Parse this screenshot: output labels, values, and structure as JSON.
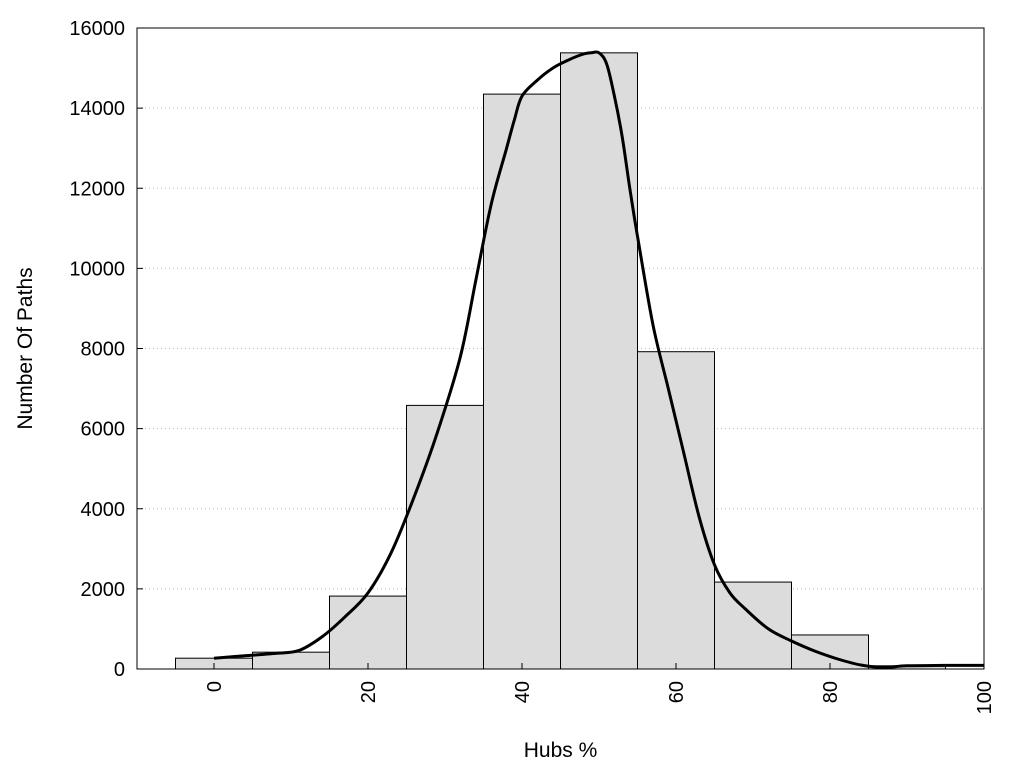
{
  "chart_data": {
    "type": "bar",
    "title": "",
    "xlabel": "Hubs %",
    "ylabel": "Number Of Paths",
    "xlim": [
      -10,
      100
    ],
    "ylim": [
      0,
      16000
    ],
    "x_ticks": [
      0,
      20,
      40,
      60,
      80,
      100
    ],
    "y_ticks": [
      0,
      2000,
      4000,
      6000,
      8000,
      10000,
      12000,
      14000,
      16000
    ],
    "grid": "horizontal dotted",
    "bar_width": 10,
    "bars": {
      "x": [
        0,
        10,
        20,
        30,
        40,
        50,
        60,
        70,
        80,
        90
      ],
      "values": [
        270,
        420,
        1820,
        6580,
        14350,
        15380,
        7920,
        2170,
        850,
        80
      ]
    },
    "curve": {
      "x": [
        0,
        4,
        8,
        11,
        14,
        17,
        20,
        23,
        26,
        29,
        32,
        34,
        36,
        38,
        39,
        40,
        42,
        44,
        46,
        48,
        49,
        50,
        51,
        52,
        53,
        54,
        55,
        57,
        59,
        61,
        63,
        65,
        67,
        69,
        72,
        75,
        78,
        81,
        84,
        87,
        90,
        95,
        100
      ],
      "values": [
        270,
        330,
        390,
        460,
        800,
        1300,
        1900,
        2900,
        4300,
        5900,
        7800,
        9700,
        11600,
        13000,
        13700,
        14300,
        14700,
        15000,
        15200,
        15350,
        15380,
        15380,
        15100,
        14300,
        13300,
        12000,
        10800,
        8600,
        7000,
        5400,
        3800,
        2600,
        1900,
        1500,
        1000,
        700,
        450,
        250,
        100,
        40,
        80,
        90,
        90
      ]
    },
    "colors": {
      "bar_fill": "#dcdcdc",
      "bar_stroke": "#000000",
      "curve": "#000000",
      "grid": "#bbbbbb"
    }
  }
}
